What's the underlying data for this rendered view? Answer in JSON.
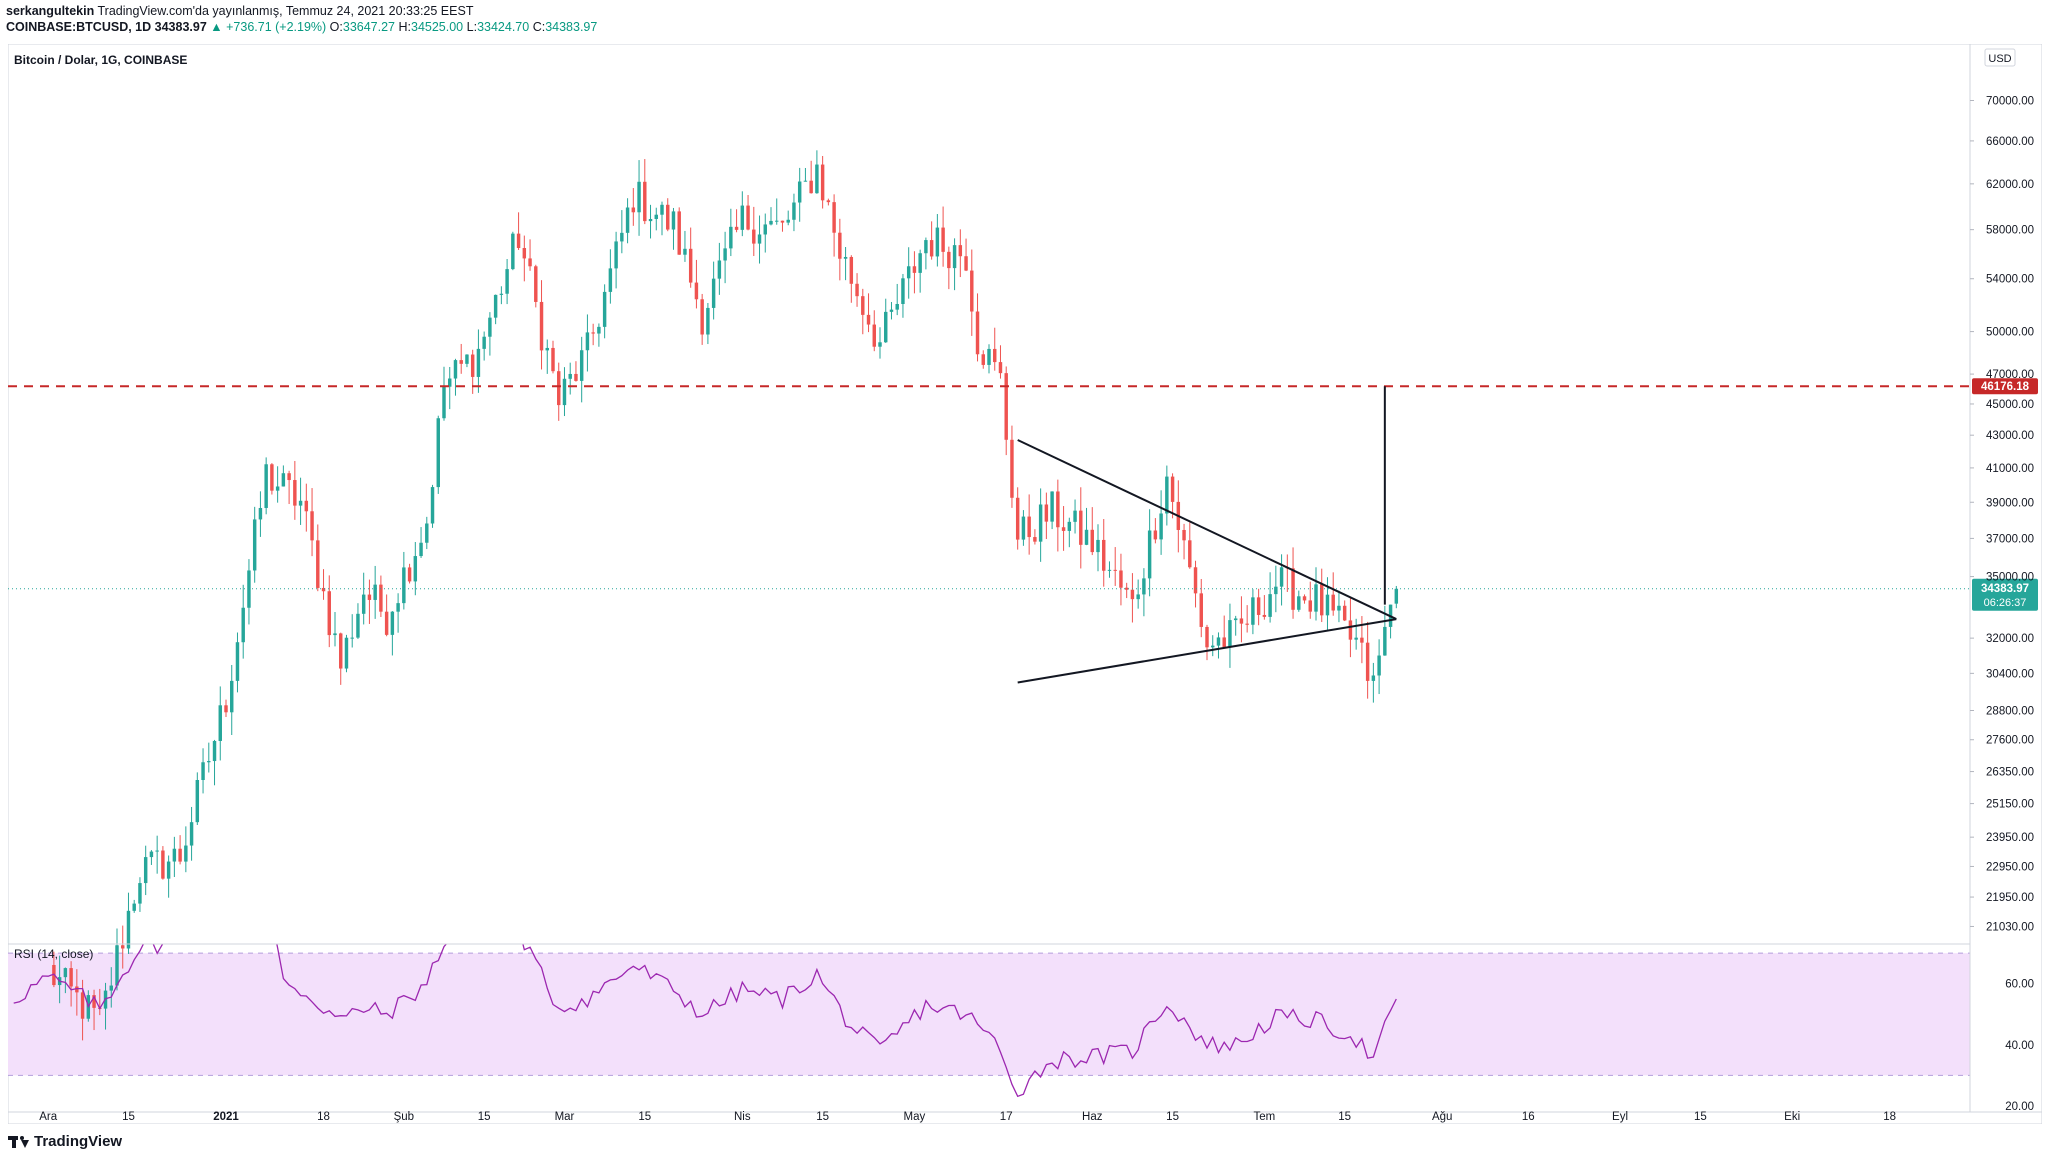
{
  "header": {
    "author": "serkangultekin",
    "published": "TradingView.com'da yayınlanmış, Temmuz 24, 2021 20:33:25 EEST",
    "symbol": "COINBASE:BTCUSD, 1D",
    "last_price": "34383.97",
    "change": "▲ +736.71 (+2.19%)",
    "o_label": "O:",
    "o_value": "33647.27",
    "h_label": "H:",
    "h_value": "34525.00",
    "l_label": "L:",
    "l_value": "33424.70",
    "c_label": "C:",
    "c_value": "34383.97"
  },
  "footer": {
    "brand": "TradingView"
  },
  "colors": {
    "up": "#26a69a",
    "down": "#ef5350",
    "resistance": "#c62828",
    "rsi": "#9c27b0",
    "rsi_band": "#f3e0fb",
    "price_tag": "#26a69a"
  },
  "chart_data": {
    "type": "candlestick",
    "title": "Bitcoin / Dolar, 1G, COINBASE",
    "currency": "USD",
    "y_scale": "log",
    "ylim": [
      20500,
      76000
    ],
    "y_ticks": [
      "70000.00",
      "66000.00",
      "62000.00",
      "58000.00",
      "54000.00",
      "50000.00",
      "47000.00",
      "45000.00",
      "43000.00",
      "41000.00",
      "39000.00",
      "37000.00",
      "35000.00",
      "32000.00",
      "30400.00",
      "28800.00",
      "27600.00",
      "26350.00",
      "25150.00",
      "23950.00",
      "22950.00",
      "21950.00",
      "21030.00"
    ],
    "x_ticks": [
      "Ara",
      "15",
      "2021",
      "18",
      "Şub",
      "15",
      "Mar",
      "15",
      "Nis",
      "15",
      "May",
      "17",
      "Haz",
      "15",
      "Tem",
      "15",
      "Ağu",
      "16",
      "Eyl",
      "15",
      "Eki",
      "18"
    ],
    "x_range": [
      "2020-11-24",
      "2021-11-01"
    ],
    "resistance_level": {
      "value": 46176.18,
      "label": "46176.18"
    },
    "current_price": {
      "value": 34383.97,
      "label": "34383.97",
      "countdown": "06:26:37"
    },
    "triangle": {
      "upper": [
        [
          "2021-05-19",
          42700
        ],
        [
          "2021-07-22",
          33700
        ]
      ],
      "lower": [
        [
          "2021-05-19",
          30000
        ],
        [
          "2021-07-22",
          32500
        ]
      ],
      "apex": [
        "2021-07-24",
        32900
      ]
    },
    "measured_move": [
      [
        "2021-07-22",
        46176.18
      ],
      [
        "2021-07-22",
        33600
      ]
    ],
    "anchors": [
      [
        "2020-12-01",
        19700
      ],
      [
        "2020-12-10",
        18300
      ],
      [
        "2020-12-17",
        22800
      ],
      [
        "2020-12-24",
        23300
      ],
      [
        "2021-01-01",
        29300
      ],
      [
        "2021-01-08",
        40600
      ],
      [
        "2021-01-14",
        39000
      ],
      [
        "2021-01-21",
        30800
      ],
      [
        "2021-01-25",
        34300
      ],
      [
        "2021-01-29",
        33100
      ],
      [
        "2021-02-05",
        38000
      ],
      [
        "2021-02-08",
        46200
      ],
      [
        "2021-02-14",
        48600
      ],
      [
        "2021-02-21",
        57500
      ],
      [
        "2021-02-28",
        45200
      ],
      [
        "2021-03-05",
        48500
      ],
      [
        "2021-03-10",
        55800
      ],
      [
        "2021-03-13",
        61000
      ],
      [
        "2021-03-20",
        58300
      ],
      [
        "2021-03-25",
        51300
      ],
      [
        "2021-04-01",
        58800
      ],
      [
        "2021-04-08",
        58000
      ],
      [
        "2021-04-14",
        63500
      ],
      [
        "2021-04-18",
        56200
      ],
      [
        "2021-04-25",
        49100
      ],
      [
        "2021-05-03",
        57200
      ],
      [
        "2021-05-10",
        56000
      ],
      [
        "2021-05-12",
        49500
      ],
      [
        "2021-05-16",
        46500
      ],
      [
        "2021-05-19",
        37000
      ],
      [
        "2021-05-25",
        38500
      ],
      [
        "2021-06-01",
        36700
      ],
      [
        "2021-06-08",
        33500
      ],
      [
        "2021-06-14",
        40500
      ],
      [
        "2021-06-21",
        31700
      ],
      [
        "2021-06-26",
        32100
      ],
      [
        "2021-07-03",
        34700
      ],
      [
        "2021-07-10",
        33800
      ],
      [
        "2021-07-17",
        31700
      ],
      [
        "2021-07-20",
        29800
      ],
      [
        "2021-07-23",
        33600
      ],
      [
        "2021-07-24",
        34383.97
      ]
    ],
    "rsi": {
      "label": "RSI (14, close)",
      "upper_band": 70,
      "lower_band": 30,
      "ticks": [
        "60.00",
        "40.00",
        "20.00"
      ],
      "ylim": [
        18,
        73
      ],
      "points": [
        [
          "2020-11-25",
          55
        ],
        [
          "2020-12-01",
          62
        ],
        [
          "2020-12-05",
          58
        ],
        [
          "2020-12-10",
          52
        ],
        [
          "2020-12-17",
          72
        ],
        [
          "2020-12-24",
          74
        ],
        [
          "2021-01-01",
          82
        ],
        [
          "2021-01-08",
          88
        ],
        [
          "2021-01-11",
          62
        ],
        [
          "2021-01-21",
          48
        ],
        [
          "2021-01-25",
          52
        ],
        [
          "2021-01-29",
          50
        ],
        [
          "2021-02-05",
          60
        ],
        [
          "2021-02-08",
          74
        ],
        [
          "2021-02-14",
          76
        ],
        [
          "2021-02-21",
          77
        ],
        [
          "2021-02-28",
          52
        ],
        [
          "2021-03-05",
          55
        ],
        [
          "2021-03-13",
          66
        ],
        [
          "2021-03-20",
          58
        ],
        [
          "2021-03-25",
          50
        ],
        [
          "2021-04-01",
          58
        ],
        [
          "2021-04-08",
          55
        ],
        [
          "2021-04-14",
          63
        ],
        [
          "2021-04-20",
          46
        ],
        [
          "2021-04-25",
          38
        ],
        [
          "2021-05-03",
          53
        ],
        [
          "2021-05-10",
          50
        ],
        [
          "2021-05-15",
          41
        ],
        [
          "2021-05-19",
          25
        ],
        [
          "2021-05-25",
          35
        ],
        [
          "2021-06-01",
          36
        ],
        [
          "2021-06-08",
          38
        ],
        [
          "2021-06-14",
          54
        ],
        [
          "2021-06-21",
          40
        ],
        [
          "2021-06-26",
          40
        ],
        [
          "2021-07-03",
          49
        ],
        [
          "2021-07-10",
          48
        ],
        [
          "2021-07-17",
          42
        ],
        [
          "2021-07-20",
          35
        ],
        [
          "2021-07-23",
          50
        ],
        [
          "2021-07-24",
          55
        ]
      ]
    }
  }
}
